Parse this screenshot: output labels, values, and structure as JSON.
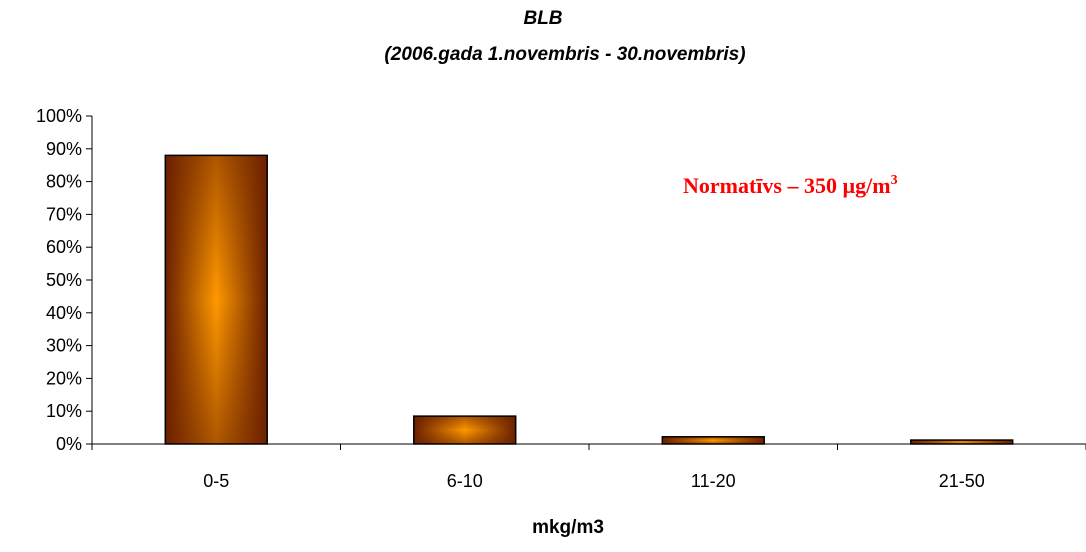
{
  "chart_data": {
    "type": "bar",
    "title": "BLB",
    "subtitle": "(2006.gada 1.novembris - 30.novembris)",
    "xlabel": "mkg/m3",
    "ylabel": "",
    "categories": [
      "0-5",
      "6-10",
      "11-20",
      "21-50"
    ],
    "values": [
      88,
      8.5,
      2.2,
      1.2
    ],
    "ylim": [
      0,
      100
    ],
    "y_ticks": [
      "0%",
      "10%",
      "20%",
      "30%",
      "40%",
      "50%",
      "60%",
      "70%",
      "80%",
      "90%",
      "100%"
    ],
    "y_tick_values": [
      0,
      10,
      20,
      30,
      40,
      50,
      60,
      70,
      80,
      90,
      100
    ],
    "grid": false,
    "legend": "none",
    "annotation": {
      "text": "Normatīvs – 350 µg/m",
      "superscript": "3",
      "color": "#ff0000"
    },
    "colors": {
      "bar_edge": "#6b2000",
      "bar_center": "#ff9900",
      "axis": "#000000"
    }
  }
}
